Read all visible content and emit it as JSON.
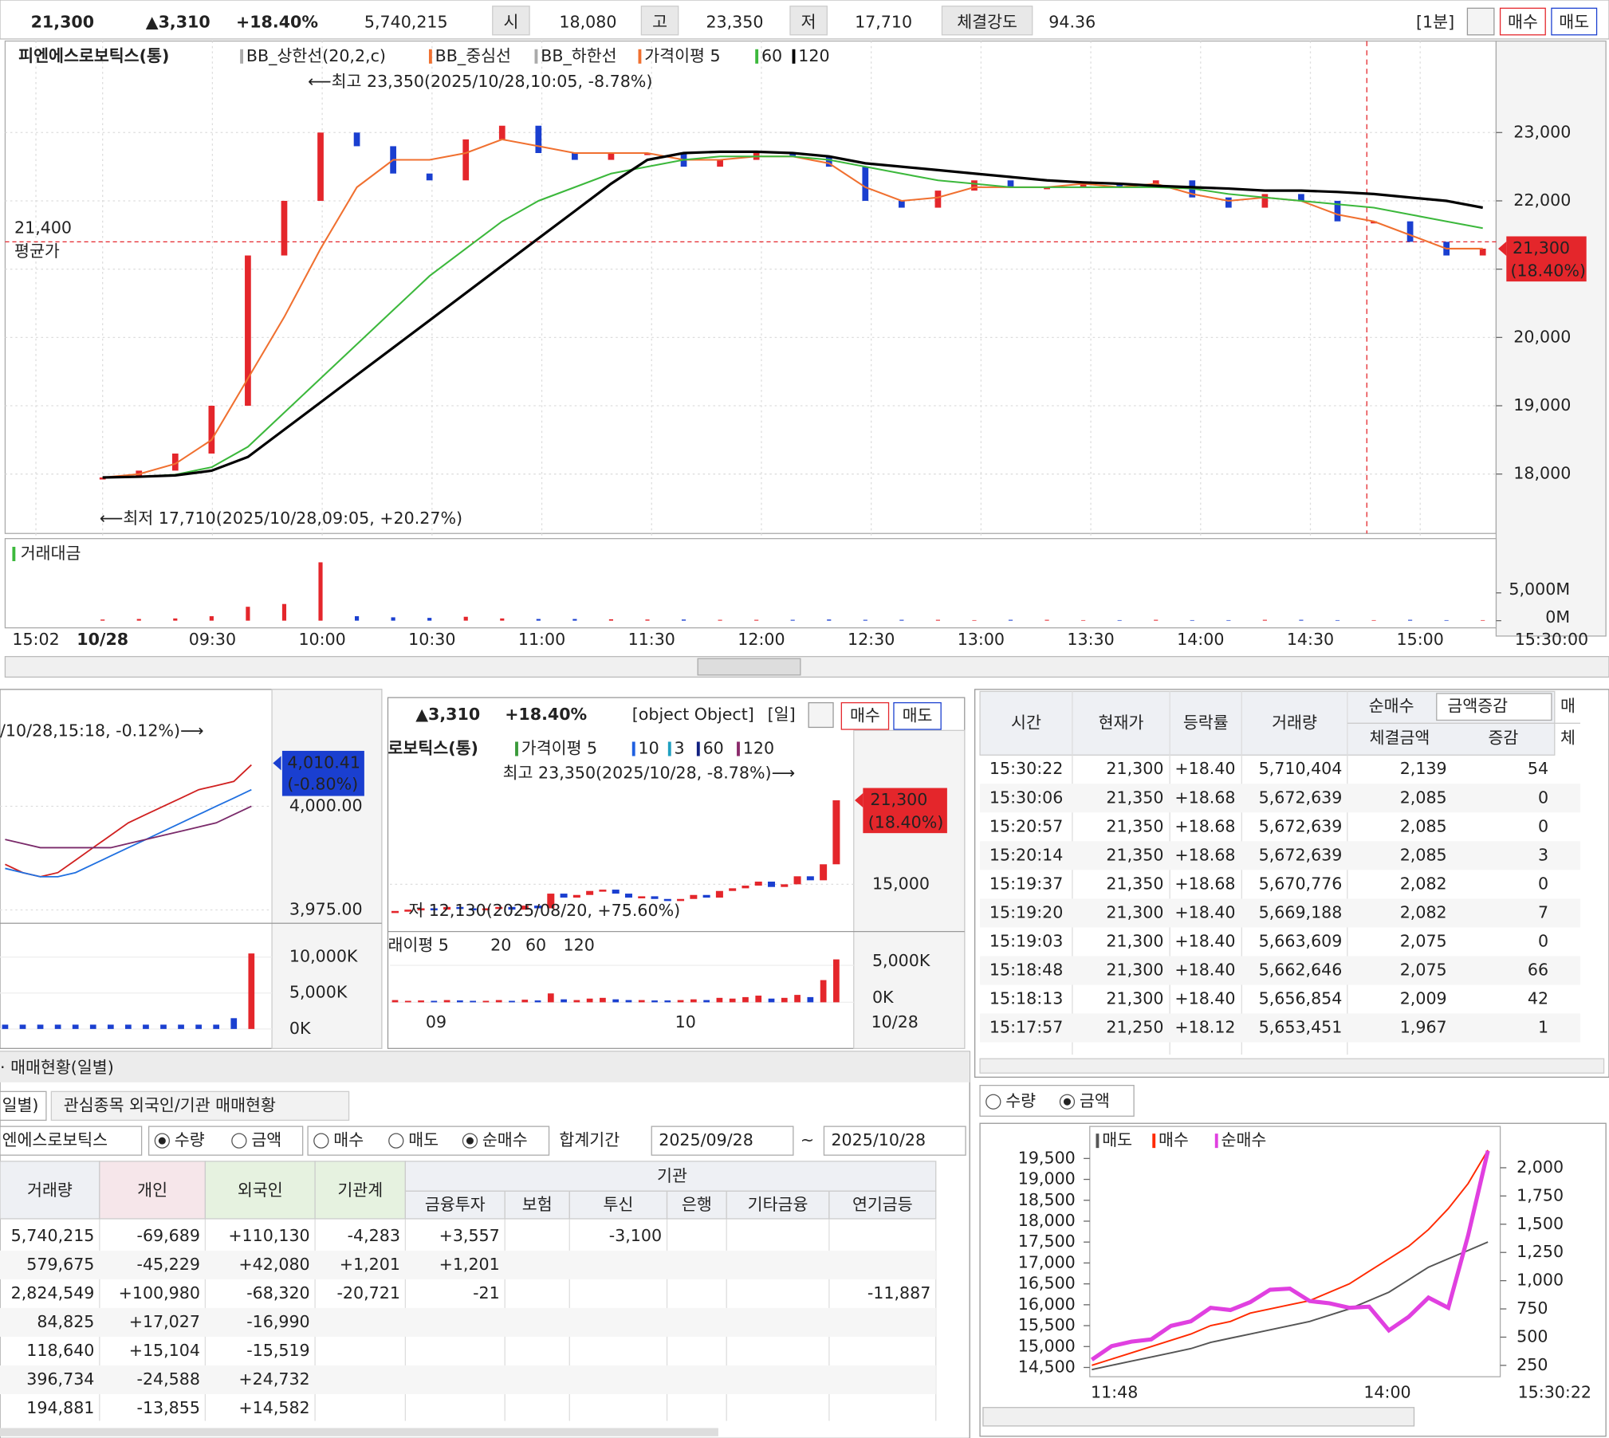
{
  "header": {
    "price": "21,300",
    "change": "▲3,310",
    "rate": "+18.40%",
    "volume": "5,740,215",
    "open_label": "시",
    "open": "18,080",
    "high_label": "고",
    "high": "23,350",
    "low_label": "저",
    "low": "17,710",
    "strength_label": "체결강도",
    "strength": "94.36",
    "period": "[1분]",
    "buy": "매수",
    "sell": "매도"
  },
  "main_chart": {
    "type": "line",
    "title": "피엔에스로보틱스(통)",
    "bb_labels": [
      "BB_상한선(20,2,c)",
      "BB_중심선",
      "BB_하한선"
    ],
    "high_note": "⟵최고 23,350(2025/10/28,10:05, -8.78%)",
    "low_note": "⟵최저 17,710(2025/10/28,09:05, +20.27%)",
    "avg_price": {
      "value": 21400,
      "label": "21,400"
    },
    "avg_text": "평균가",
    "current_price": {
      "value": 21300,
      "label": "21,300"
    },
    "current_rate": "(18.40%)",
    "time_label": "15:30:00",
    "xticks": [
      "15:02",
      "10/28",
      "09:30",
      "10:00",
      "10:30",
      "11:00",
      "11:30",
      "12:00",
      "12:30",
      "13:00",
      "13:30",
      "14:00",
      "14:30",
      "15:00"
    ],
    "ylim": [
      17130,
      24340
    ],
    "yticks": [
      {
        "value": 18000,
        "label": "18,000"
      },
      {
        "value": 19000,
        "label": "19,000"
      },
      {
        "value": 20000,
        "label": "20,000"
      },
      {
        "value": 21000,
        "label": "21,000"
      },
      {
        "value": 22000,
        "label": "22,000"
      },
      {
        "value": 23000,
        "label": "23,000"
      }
    ],
    "price": [
      17950,
      18050,
      18300,
      19000,
      21200,
      22000,
      23000,
      22800,
      22400,
      22300,
      22900,
      23100,
      22700,
      22600,
      22700,
      22700,
      22500,
      22600,
      22700,
      22650,
      22500,
      22000,
      21900,
      22150,
      22300,
      22200,
      22200,
      22250,
      22200,
      22300,
      22050,
      21900,
      22100,
      22000,
      21700,
      21700,
      21400,
      21200,
      21300
    ],
    "series": [
      {
        "name": "가격이평 5",
        "color": "#f07030",
        "values": [
          17950,
          18000,
          18150,
          18500,
          19400,
          20300,
          21300,
          22200,
          22600,
          22600,
          22700,
          22900,
          22800,
          22700,
          22700,
          22700,
          22600,
          22600,
          22650,
          22650,
          22550,
          22200,
          22000,
          22050,
          22200,
          22200,
          22200,
          22250,
          22200,
          22250,
          22100,
          22000,
          22050,
          22000,
          21800,
          21700,
          21500,
          21300,
          21300
        ]
      },
      {
        "name": "60",
        "color": "#3cb83c",
        "values": [
          17950,
          17960,
          17990,
          18100,
          18400,
          18900,
          19400,
          19900,
          20400,
          20900,
          21300,
          21700,
          22000,
          22200,
          22400,
          22500,
          22600,
          22650,
          22650,
          22650,
          22600,
          22500,
          22400,
          22300,
          22250,
          22200,
          22200,
          22200,
          22200,
          22200,
          22180,
          22100,
          22050,
          22000,
          21950,
          21900,
          21800,
          21700,
          21600
        ]
      },
      {
        "name": "120",
        "color": "#000000",
        "values": [
          17950,
          17960,
          17980,
          18050,
          18250,
          18650,
          19050,
          19450,
          19850,
          20250,
          20650,
          21050,
          21450,
          21850,
          22250,
          22600,
          22700,
          22720,
          22720,
          22700,
          22650,
          22550,
          22500,
          22450,
          22400,
          22350,
          22300,
          22270,
          22250,
          22220,
          22200,
          22180,
          22150,
          22150,
          22130,
          22100,
          22050,
          22000,
          21900
        ]
      }
    ]
  },
  "volume_chart": {
    "type": "bar",
    "title": "거래대금",
    "ylim": [
      0,
      12000
    ],
    "yticks": [
      {
        "value": 0,
        "label": "0M"
      },
      {
        "value": 5000,
        "label": "5,000M"
      }
    ],
    "values": [
      200,
      300,
      400,
      800,
      2500,
      3000,
      10500,
      800,
      600,
      500,
      700,
      400,
      300,
      300,
      250,
      200,
      200,
      150,
      150,
      150,
      200,
      150,
      150,
      150,
      100,
      150,
      150,
      100,
      100,
      150,
      100,
      100,
      150,
      150,
      100,
      100,
      150,
      100,
      100
    ]
  },
  "index_chart": {
    "type": "line",
    "note": "/10/28,15:18, -0.12%)⟶",
    "current": {
      "value": 4010.41,
      "label": "4,010.41"
    },
    "current_rate": "(-0.80%)",
    "ylim": [
      3973,
      4024.25
    ],
    "yticks": [
      {
        "value": 4000,
        "label": "4,000.00"
      },
      {
        "value": 3975,
        "label": "3,975.00"
      }
    ],
    "series": [
      {
        "color": "#d02020",
        "values": [
          3986,
          3984,
          3983,
          3984,
          3987,
          3990,
          3993,
          3996,
          3998,
          4000,
          4002,
          4004,
          4005,
          4006,
          4010
        ]
      },
      {
        "color": "#2070e0",
        "values": [
          3985,
          3984,
          3983,
          3983,
          3984,
          3986,
          3988,
          3990,
          3992,
          3994,
          3996,
          3998,
          4000,
          4002,
          4004
        ]
      },
      {
        "color": "#7a2a6a",
        "values": [
          3992,
          3991,
          3990,
          3990,
          3990,
          3990,
          3990,
          3991,
          3992,
          3993,
          3994,
          3995,
          3996,
          3998,
          4000
        ]
      }
    ],
    "volume": {
      "ylim": [
        0,
        10700
      ],
      "yticks": [
        {
          "value": 10000,
          "label": "10,000K"
        },
        {
          "value": 5000,
          "label": "5,000K"
        },
        {
          "value": 0,
          "label": "0K"
        }
      ],
      "values": [
        600,
        600,
        600,
        600,
        600,
        600,
        600,
        600,
        600,
        600,
        600,
        600,
        600,
        1500,
        10500
      ]
    }
  },
  "daily_chart": {
    "type": "candle",
    "change": "▲3,310",
    "rate": "+18.40%",
    "volume": {
      "legend": [
        "래이평 5",
        "20",
        "60",
        "120"
      ],
      "ylim": [
        0,
        8600
      ],
      "yticks": [
        {
          "value": 5000,
          "label": "5,000K"
        },
        {
          "value": 0,
          "label": "0K"
        }
      ],
      "values": [
        300,
        200,
        250,
        200,
        300,
        250,
        200,
        200,
        300,
        200,
        350,
        250,
        1200,
        400,
        300,
        500,
        600,
        400,
        300,
        300,
        250,
        250,
        300,
        400,
        300,
        600,
        500,
        700,
        900,
        500,
        600,
        1000,
        700,
        3000,
        5800
      ]
    },
    "period": "[일]",
    "buy": "매수",
    "sell": "매도",
    "title": "로보틱스(통)",
    "legend": [
      "가격이평 5",
      "10",
      "3",
      "60",
      "120"
    ],
    "high_note": "최고 23,350(2025/10/28, -8.78%)⟶",
    "low_note": "저 12,130(2025/08/20, +75.60%)",
    "current_price": {
      "value": 21300,
      "label": "21,300"
    },
    "current_rate": "(18.40%)",
    "ylim": [
      11690,
      26540
    ],
    "yticks": [
      {
        "value": 15000,
        "label": "15,000"
      }
    ],
    "xticks": [
      "09",
      "10",
      "10/28"
    ],
    "values": [
      13000,
      13100,
      13200,
      13100,
      13300,
      13200,
      13100,
      13200,
      13300,
      13100,
      13400,
      13200,
      14300,
      14000,
      14200,
      14500,
      14600,
      14300,
      14000,
      14100,
      13900,
      13800,
      13900,
      14200,
      14000,
      14500,
      14700,
      14900,
      15200,
      14800,
      15000,
      15600,
      15300,
      16500,
      21300
    ]
  },
  "tick_table": {
    "headers": [
      "시간",
      "현재가",
      "등락률",
      "거래량",
      "순매수",
      "금액증감",
      "매",
      "체결금액",
      "증감",
      "체"
    ],
    "rows": [
      [
        "15:30:22",
        "21,300",
        "+18.40",
        "5,710,404",
        "2,139",
        "54"
      ],
      [
        "15:30:06",
        "21,350",
        "+18.68",
        "5,672,639",
        "2,085",
        "0"
      ],
      [
        "15:20:57",
        "21,350",
        "+18.68",
        "5,672,639",
        "2,085",
        "0"
      ],
      [
        "15:20:14",
        "21,350",
        "+18.68",
        "5,672,639",
        "2,085",
        "3"
      ],
      [
        "15:19:37",
        "21,350",
        "+18.68",
        "5,670,776",
        "2,082",
        "0"
      ],
      [
        "15:19:20",
        "21,300",
        "+18.40",
        "5,669,188",
        "2,082",
        "7"
      ],
      [
        "15:19:03",
        "21,300",
        "+18.40",
        "5,663,609",
        "2,075",
        "0"
      ],
      [
        "15:18:48",
        "21,300",
        "+18.40",
        "5,662,646",
        "2,075",
        "66"
      ],
      [
        "15:18:13",
        "21,300",
        "+18.40",
        "5,656,854",
        "2,009",
        "42"
      ],
      [
        "15:17:57",
        "21,250",
        "+18.12",
        "5,653,451",
        "1,967",
        "1"
      ]
    ]
  },
  "trade_table": {
    "title": "· 매매현황(일별)",
    "tabs": [
      "일별)",
      "관심종목 외국인/기관 매매현황"
    ],
    "stock": "엔에스로보틱스",
    "unit_options": [
      "수량",
      "금액"
    ],
    "side_options": [
      "매수",
      "매도",
      "순매수"
    ],
    "period_label": "합계기간",
    "from": "2025/09/28",
    "tilde": "~",
    "to": "2025/10/28",
    "group": "기관",
    "headers": [
      "거래량",
      "개인",
      "외국인",
      "기관계",
      "금융투자",
      "보험",
      "투신",
      "은행",
      "기타금융",
      "연기금등"
    ],
    "rows": [
      [
        "5,740,215",
        "-69,689",
        "+110,130",
        "-4,283",
        "+3,557",
        null,
        "-3,100",
        null,
        null,
        null
      ],
      [
        "579,675",
        "-45,229",
        "+42,080",
        "+1,201",
        "+1,201",
        null,
        null,
        null,
        null,
        null
      ],
      [
        "2,824,549",
        "+100,980",
        "-68,320",
        "-20,721",
        "-21",
        null,
        null,
        null,
        null,
        "-11,887"
      ],
      [
        "84,825",
        "+17,027",
        "-16,990",
        null,
        null,
        null,
        null,
        null,
        null,
        null
      ],
      [
        "118,640",
        "+15,104",
        "-15,519",
        null,
        null,
        null,
        null,
        null,
        null,
        null
      ],
      [
        "396,734",
        "-24,588",
        "+24,732",
        null,
        null,
        null,
        null,
        null,
        null,
        null
      ],
      [
        "194,881",
        "-13,855",
        "+14,582",
        null,
        null,
        null,
        null,
        null,
        null,
        null
      ]
    ]
  },
  "flow_chart": {
    "type": "line",
    "options": [
      "수량",
      "금액"
    ],
    "ylim": [
      14327,
      20267
    ],
    "yticks": [
      {
        "value": 14500,
        "label": "14,500"
      },
      {
        "value": 15000,
        "label": "15,000"
      },
      {
        "value": 15500,
        "label": "15,500"
      },
      {
        "value": 16000,
        "label": "16,000"
      },
      {
        "value": 16500,
        "label": "16,500"
      },
      {
        "value": 17000,
        "label": "17,000"
      },
      {
        "value": 17500,
        "label": "17,500"
      },
      {
        "value": 18000,
        "label": "18,000"
      },
      {
        "value": 18500,
        "label": "18,500"
      },
      {
        "value": 19000,
        "label": "19,000"
      },
      {
        "value": 19500,
        "label": "19,500"
      }
    ],
    "y2lim": [
      167.5,
      2366
    ],
    "y2ticks": [
      250,
      500,
      750,
      {
        "value": 1000,
        "label": "1,000"
      },
      {
        "value": 1250,
        "label": "1,250"
      },
      {
        "value": 1500,
        "label": "1,500"
      },
      {
        "value": 1750,
        "label": "1,750"
      },
      {
        "value": 2000,
        "label": "2,000"
      }
    ],
    "xticks": [
      "11:48",
      "14:00",
      "15:30:22"
    ],
    "series": [
      {
        "name": "매도",
        "color": "#555555",
        "values": [
          14450,
          14550,
          14650,
          14750,
          14850,
          14950,
          15100,
          15200,
          15300,
          15400,
          15500,
          15600,
          15750,
          15900,
          16100,
          16300,
          16600,
          16900,
          17100,
          17300,
          17500
        ]
      },
      {
        "name": "매수",
        "color": "#ff2a00",
        "values": [
          14550,
          14700,
          14850,
          15000,
          15150,
          15300,
          15500,
          15600,
          15800,
          15900,
          16000,
          16100,
          16300,
          16500,
          16800,
          17100,
          17400,
          17800,
          18300,
          18900,
          19700
        ]
      },
      {
        "name": "순매수",
        "color": "#e040e0",
        "axis": "y2",
        "values": [
          300,
          420,
          460,
          480,
          600,
          640,
          760,
          740,
          810,
          920,
          930,
          820,
          800,
          760,
          770,
          560,
          680,
          850,
          760,
          1400,
          2150
        ]
      }
    ]
  }
}
